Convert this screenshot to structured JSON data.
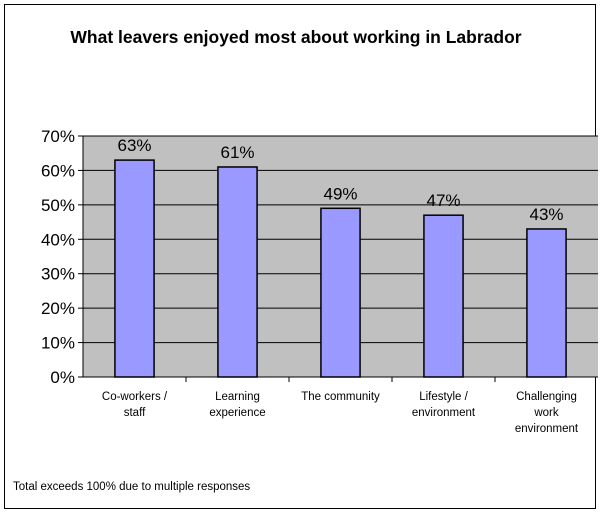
{
  "chart_data": {
    "type": "bar",
    "title": "What leavers enjoyed most about working in Labrador",
    "categories": [
      [
        "Co-workers /",
        "staff"
      ],
      [
        "Learning",
        "experience"
      ],
      [
        "The community"
      ],
      [
        "Lifestyle /",
        "environment"
      ],
      [
        "Challenging",
        "work",
        "environment"
      ]
    ],
    "values": [
      63,
      61,
      49,
      47,
      43
    ],
    "value_labels": [
      "63%",
      "61%",
      "49%",
      "47%",
      "43%"
    ],
    "ylim": [
      0,
      70
    ],
    "yticks": [
      "0%",
      "10%",
      "20%",
      "30%",
      "40%",
      "50%",
      "60%",
      "70%"
    ],
    "xlabel": "",
    "ylabel": "",
    "grid": true,
    "legend": "none",
    "colors": {
      "bar": "#9999ff",
      "plot_area": "#c0c0c0",
      "axis": "#000000"
    }
  },
  "footnote": "Total exceeds 100% due to multiple responses"
}
